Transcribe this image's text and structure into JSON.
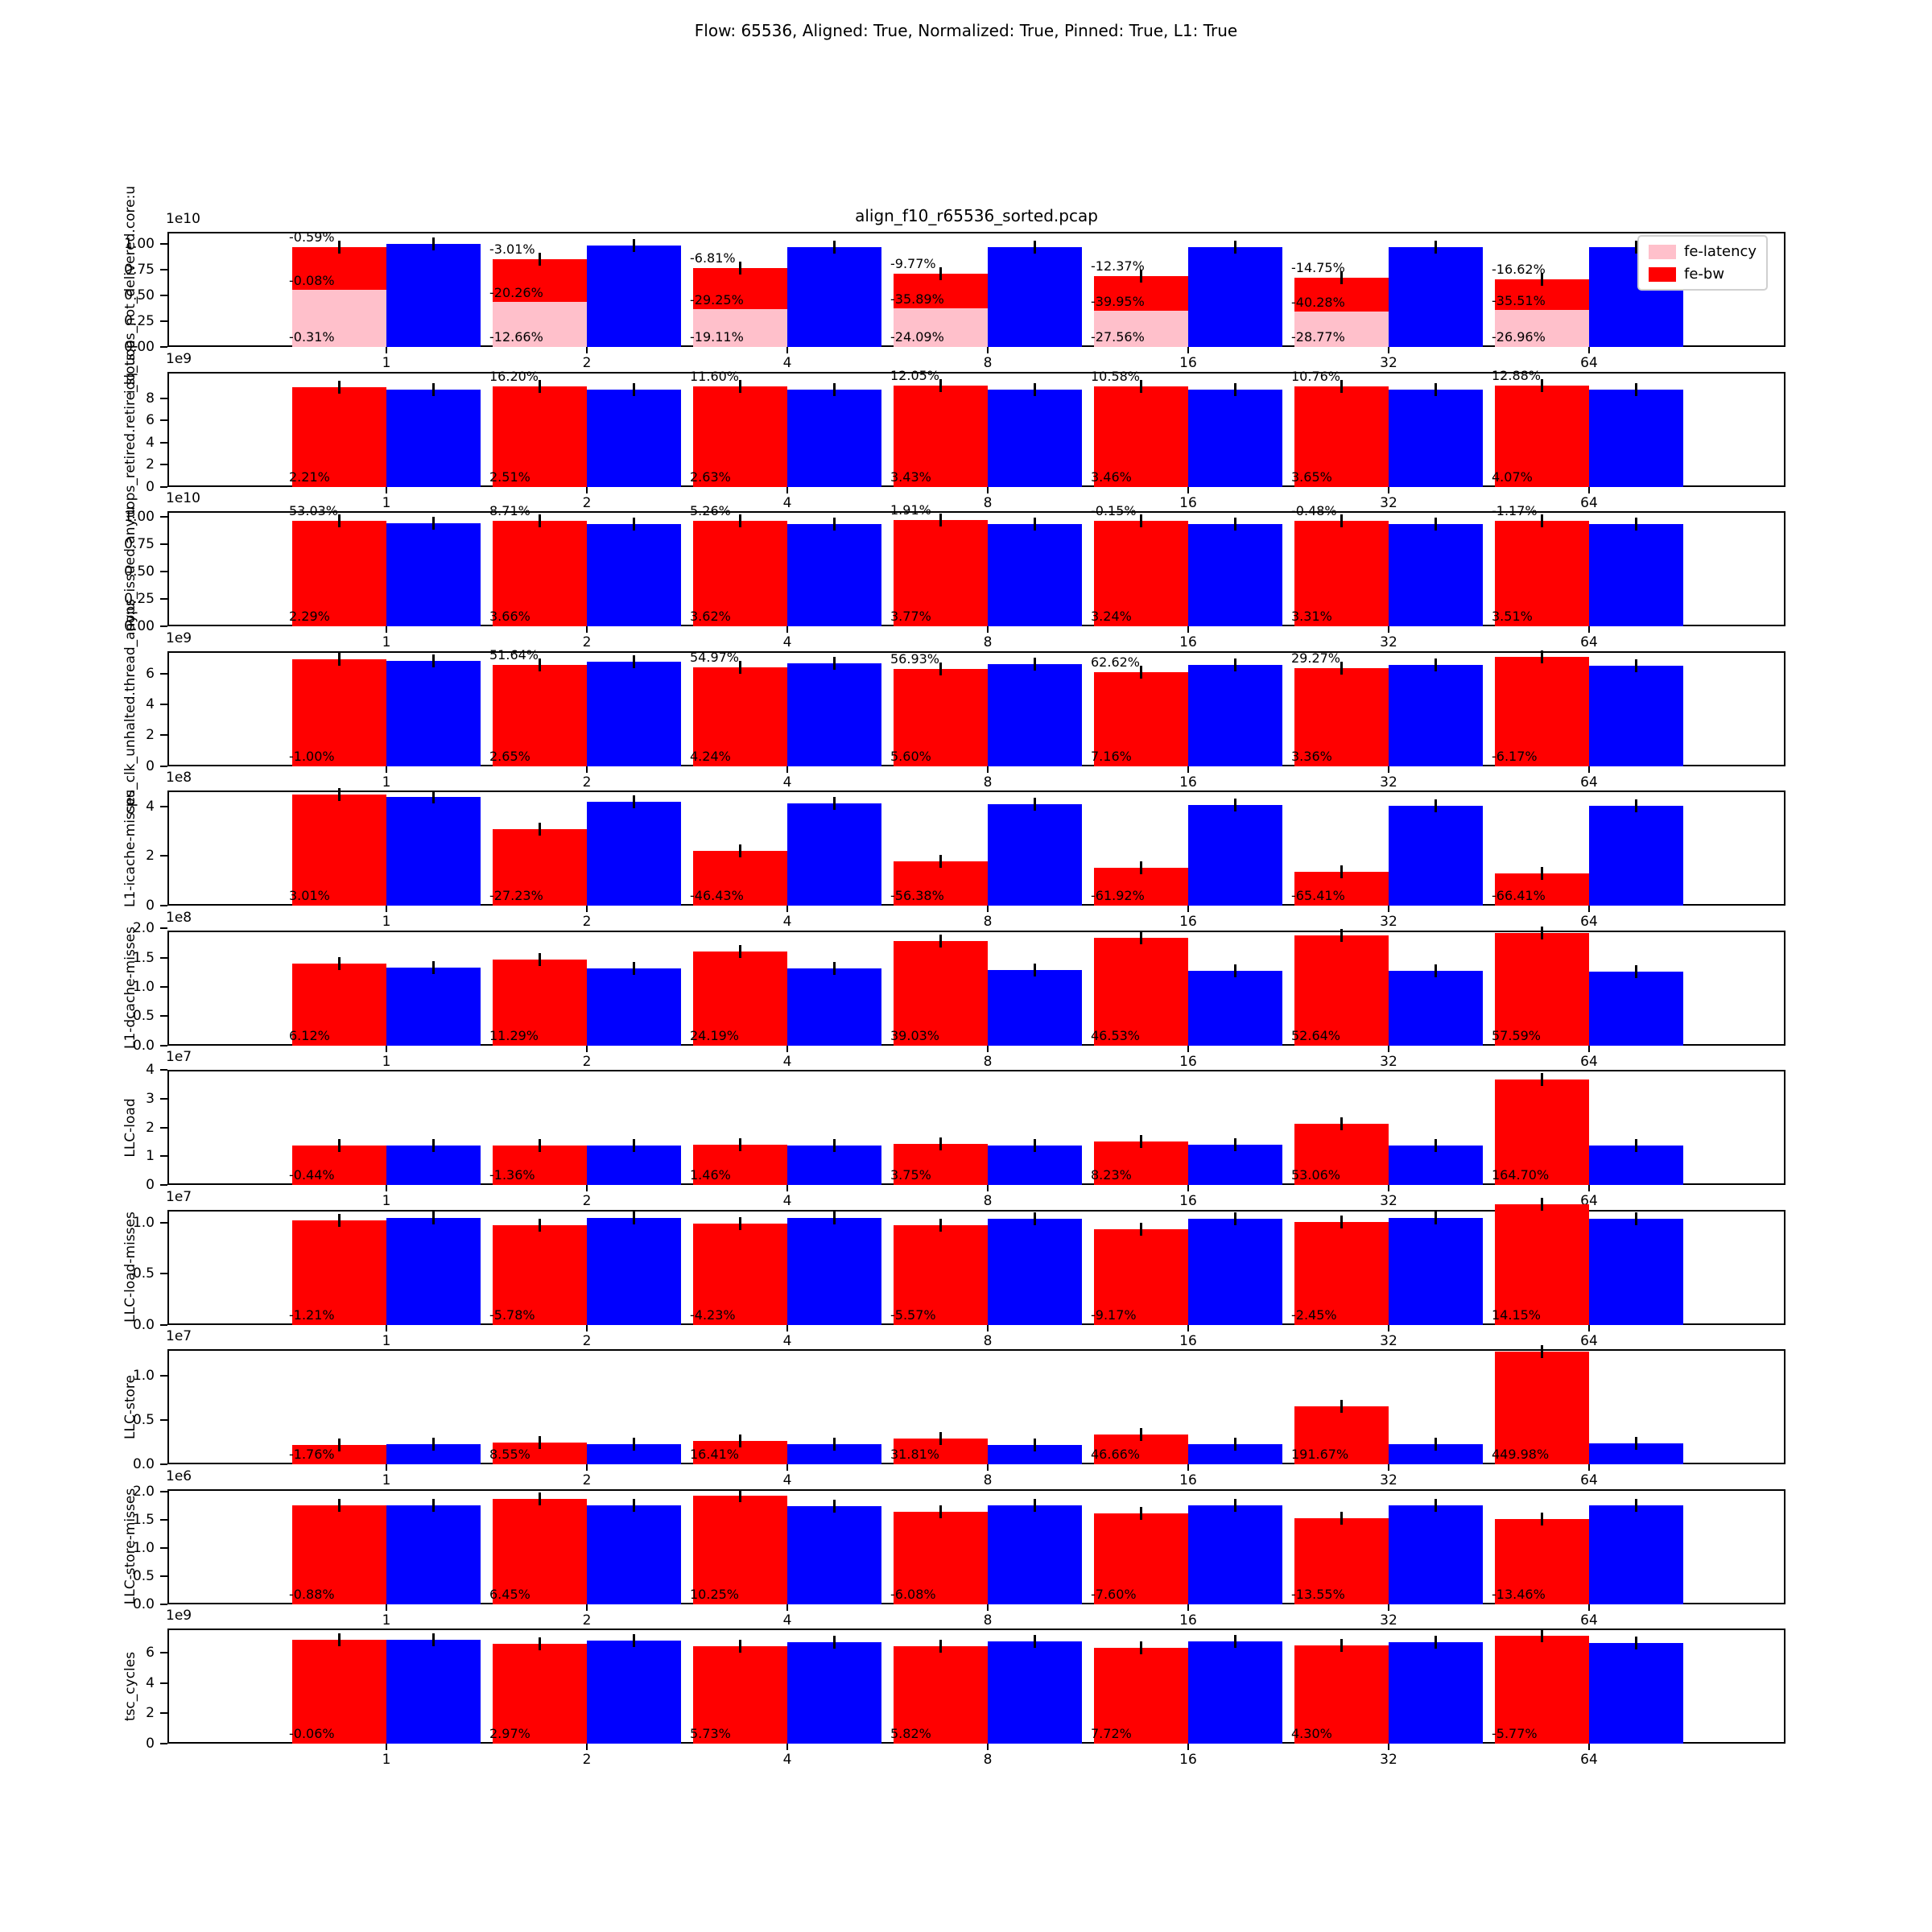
{
  "figure": {
    "title": "Flow: 65536, Aligned: True, Normalized: True, Pinned: True, L1: True",
    "subplot_title": "align_f10_r65536_sorted.pcap",
    "background": "#ffffff"
  },
  "legend": {
    "position": "upper-right-first-subplot",
    "items": [
      {
        "label": "fe-latency",
        "color": "#ffc0cb"
      },
      {
        "label": "fe-bw",
        "color": "#ff0000"
      }
    ]
  },
  "colors": {
    "fe_bw": "#ff0000",
    "fe_latency": "#ffc0cb",
    "baseline": "#0000ff",
    "error_bar": "#000000"
  },
  "chart_data": {
    "type": "bar",
    "grid": false,
    "error_bars": true,
    "categories": [
      "1",
      "2",
      "4",
      "8",
      "16",
      "32",
      "64"
    ],
    "series_legend": [
      "fe-latency",
      "fe-bw"
    ],
    "subplots": [
      {
        "ylabel": "idq_uops_not_delivered.core:u",
        "offset": "1e10",
        "ymax": 1.12,
        "yticks": [
          {
            "v": 0,
            "l": "0.00"
          },
          {
            "v": 0.25,
            "l": "0.25"
          },
          {
            "v": 0.5,
            "l": "0.50"
          },
          {
            "v": 0.75,
            "l": "0.75"
          },
          {
            "v": 1.0,
            "l": "1.00"
          }
        ],
        "red": [
          0.97,
          0.855,
          0.77,
          0.715,
          0.69,
          0.67,
          0.66
        ],
        "pink": [
          0.555,
          0.44,
          0.365,
          0.375,
          0.35,
          0.345,
          0.36
        ],
        "blue": [
          1.0,
          0.985,
          0.975,
          0.972,
          0.972,
          0.972,
          0.968
        ],
        "ann_top": [
          "-0.59%",
          "-3.01%",
          "-6.81%",
          "-9.77%",
          "-12.37%",
          "-14.75%",
          "-16.62%"
        ],
        "ann_mid": [
          "-0.08%",
          "-20.26%",
          "-29.25%",
          "-35.89%",
          "-39.95%",
          "-40.28%",
          "-35.51%"
        ],
        "ann_bottom": [
          "-0.31%",
          "-12.66%",
          "-19.11%",
          "-24.09%",
          "-27.56%",
          "-28.77%",
          "-26.96%"
        ]
      },
      {
        "ylabel": "uops_retired.retire_slots:u",
        "offset": "1e9",
        "ymax": 10.4,
        "yticks": [
          {
            "v": 0,
            "l": "0"
          },
          {
            "v": 2,
            "l": "2"
          },
          {
            "v": 4,
            "l": "4"
          },
          {
            "v": 6,
            "l": "6"
          },
          {
            "v": 8,
            "l": "8"
          }
        ],
        "red": [
          8.99,
          9.04,
          9.02,
          9.1,
          9.06,
          9.06,
          9.12
        ],
        "blue": [
          8.8,
          8.78,
          8.78,
          8.78,
          8.75,
          8.75,
          8.76
        ],
        "ann_top": [
          null,
          "16.20%",
          "11.60%",
          "12.05%",
          "10.58%",
          "10.76%",
          "12.88%"
        ],
        "ann_bottom": [
          "2.21%",
          "2.51%",
          "2.63%",
          "3.43%",
          "3.46%",
          "3.65%",
          "4.07%"
        ]
      },
      {
        "ylabel": "uops_issued.any:u",
        "offset": "1e10",
        "ymax": 1.05,
        "yticks": [
          {
            "v": 0,
            "l": "0.00"
          },
          {
            "v": 0.25,
            "l": "0.25"
          },
          {
            "v": 0.5,
            "l": "0.50"
          },
          {
            "v": 0.75,
            "l": "0.75"
          },
          {
            "v": 1.0,
            "l": "1.00"
          }
        ],
        "red": [
          0.962,
          0.965,
          0.962,
          0.966,
          0.963,
          0.962,
          0.965
        ],
        "blue": [
          0.937,
          0.932,
          0.932,
          0.932,
          0.933,
          0.932,
          0.931
        ],
        "ann_top": [
          "53.03%",
          "8.71%",
          "5.26%",
          "1.91%",
          "-0.15%",
          "-0.48%",
          "-1.17%"
        ],
        "ann_bottom": [
          "2.29%",
          "3.66%",
          "3.62%",
          "3.77%",
          "3.24%",
          "3.31%",
          "3.51%"
        ]
      },
      {
        "ylabel": "cpu_clk_unhalted.thread_any:u",
        "offset": "1e9",
        "ymax": 7.5,
        "yticks": [
          {
            "v": 0,
            "l": "0"
          },
          {
            "v": 2,
            "l": "2"
          },
          {
            "v": 4,
            "l": "4"
          },
          {
            "v": 6,
            "l": "6"
          }
        ],
        "red": [
          6.93,
          6.58,
          6.42,
          6.3,
          6.13,
          6.37,
          7.12
        ],
        "blue": [
          6.83,
          6.8,
          6.67,
          6.62,
          6.6,
          6.6,
          6.55
        ],
        "ann_top": [
          null,
          "51.64%",
          "54.97%",
          "56.93%",
          "62.62%",
          "29.27%",
          null
        ],
        "ann_bottom": [
          "-1.00%",
          "2.65%",
          "4.24%",
          "5.60%",
          "7.16%",
          "3.36%",
          "-6.17%"
        ]
      },
      {
        "ylabel": "L1-icache-misses",
        "offset": "1e8",
        "ymax": 4.65,
        "yticks": [
          {
            "v": 0,
            "l": "0"
          },
          {
            "v": 2,
            "l": "2"
          },
          {
            "v": 4,
            "l": "4"
          }
        ],
        "red": [
          4.5,
          3.08,
          2.22,
          1.78,
          1.53,
          1.36,
          1.29
        ],
        "blue": [
          4.4,
          4.18,
          4.12,
          4.1,
          4.06,
          4.02,
          4.02
        ],
        "ann_bottom": [
          "3.01%",
          "-27.23%",
          "-46.43%",
          "-56.38%",
          "-61.92%",
          "-65.41%",
          "-66.41%"
        ]
      },
      {
        "ylabel": "L1-dcache-misses",
        "offset": "1e8",
        "ymax": 1.97,
        "yticks": [
          {
            "v": 0,
            "l": "0.0"
          },
          {
            "v": 0.5,
            "l": "0.5"
          },
          {
            "v": 1.0,
            "l": "1.0"
          },
          {
            "v": 1.5,
            "l": "1.5"
          },
          {
            "v": 2.0,
            "l": "2.0"
          }
        ],
        "red": [
          1.4,
          1.47,
          1.6,
          1.78,
          1.84,
          1.88,
          1.92
        ],
        "blue": [
          1.33,
          1.32,
          1.31,
          1.29,
          1.28,
          1.27,
          1.26
        ],
        "ann_bottom": [
          "6.12%",
          "11.29%",
          "24.19%",
          "39.03%",
          "46.53%",
          "52.64%",
          "57.59%"
        ]
      },
      {
        "ylabel": "LLC-load",
        "offset": "1e7",
        "ymax": 4.0,
        "yticks": [
          {
            "v": 0,
            "l": "0"
          },
          {
            "v": 1,
            "l": "1"
          },
          {
            "v": 2,
            "l": "2"
          },
          {
            "v": 3,
            "l": "3"
          },
          {
            "v": 4,
            "l": "4"
          }
        ],
        "red": [
          1.38,
          1.37,
          1.41,
          1.44,
          1.5,
          2.12,
          3.66
        ],
        "blue": [
          1.385,
          1.385,
          1.385,
          1.385,
          1.39,
          1.385,
          1.38
        ],
        "ann_bottom": [
          "-0.44%",
          "-1.36%",
          "1.46%",
          "3.75%",
          "8.23%",
          "53.06%",
          "164.70%"
        ]
      },
      {
        "ylabel": "LLC-load-misses",
        "offset": "1e7",
        "ymax": 1.13,
        "yticks": [
          {
            "v": 0,
            "l": "0.0"
          },
          {
            "v": 0.5,
            "l": "0.5"
          },
          {
            "v": 1.0,
            "l": "1.0"
          }
        ],
        "red": [
          1.02,
          0.975,
          0.995,
          0.975,
          0.935,
          1.005,
          1.185
        ],
        "blue": [
          1.045,
          1.045,
          1.045,
          1.04,
          1.04,
          1.045,
          1.04
        ],
        "ann_bottom": [
          "-1.21%",
          "-5.78%",
          "-4.23%",
          "-5.57%",
          "-9.17%",
          "-2.45%",
          "14.15%"
        ]
      },
      {
        "ylabel": "LLC-store",
        "offset": "1e7",
        "ymax": 1.3,
        "yticks": [
          {
            "v": 0,
            "l": "0.0"
          },
          {
            "v": 0.5,
            "l": "0.5"
          },
          {
            "v": 1.0,
            "l": "1.0"
          }
        ],
        "red": [
          0.221,
          0.246,
          0.265,
          0.293,
          0.334,
          0.656,
          1.27
        ],
        "blue": [
          0.225,
          0.227,
          0.228,
          0.222,
          0.228,
          0.225,
          0.235
        ],
        "ann_bottom": [
          "-1.76%",
          "8.55%",
          "16.41%",
          "31.81%",
          "46.66%",
          "191.67%",
          "449.98%"
        ]
      },
      {
        "ylabel": "LLC-store-misses",
        "offset": "1e6",
        "ymax": 2.05,
        "yticks": [
          {
            "v": 0,
            "l": "0.0"
          },
          {
            "v": 0.5,
            "l": "0.5"
          },
          {
            "v": 1.0,
            "l": "1.0"
          },
          {
            "v": 1.5,
            "l": "1.5"
          },
          {
            "v": 2.0,
            "l": "2.0"
          }
        ],
        "red": [
          1.75,
          1.87,
          1.93,
          1.64,
          1.62,
          1.52,
          1.51
        ],
        "blue": [
          1.76,
          1.76,
          1.74,
          1.75,
          1.75,
          1.76,
          1.76
        ],
        "ann_bottom": [
          "-0.88%",
          "6.45%",
          "10.25%",
          "-6.08%",
          "-7.60%",
          "-13.55%",
          "-13.46%"
        ]
      },
      {
        "ylabel": "tsc_cycles",
        "offset": "1e9",
        "ymax": 7.6,
        "yticks": [
          {
            "v": 0,
            "l": "0"
          },
          {
            "v": 2,
            "l": "2"
          },
          {
            "v": 4,
            "l": "4"
          },
          {
            "v": 6,
            "l": "6"
          }
        ],
        "red": [
          6.85,
          6.6,
          6.45,
          6.45,
          6.3,
          6.5,
          7.1
        ],
        "blue": [
          6.85,
          6.8,
          6.7,
          6.75,
          6.75,
          6.7,
          6.65
        ],
        "ann_bottom": [
          "-0.06%",
          "2.97%",
          "5.73%",
          "5.82%",
          "7.72%",
          "4.30%",
          "-5.77%"
        ]
      }
    ]
  }
}
